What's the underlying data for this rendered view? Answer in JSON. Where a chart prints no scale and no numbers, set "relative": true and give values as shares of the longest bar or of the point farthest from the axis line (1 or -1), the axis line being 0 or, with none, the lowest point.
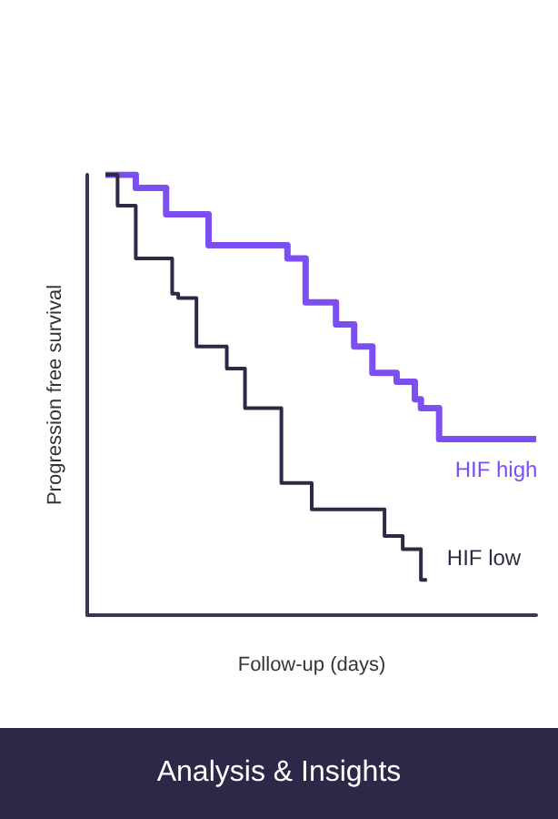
{
  "chart_data": {
    "type": "step",
    "relative": true,
    "xlabel": "Follow-up (days)",
    "ylabel": "Progression free survival",
    "annotations": [
      "Analysis & Insights"
    ],
    "legend": false,
    "categories": [
      null,
      null,
      null,
      null,
      null,
      null,
      null,
      null,
      null,
      null,
      null,
      null,
      null,
      null,
      null,
      null,
      null,
      null,
      null,
      null,
      null,
      null,
      null,
      null,
      null,
      null,
      null,
      null,
      null,
      null,
      null,
      null,
      null,
      null,
      null,
      null,
      null,
      null,
      null,
      null,
      null,
      null,
      null,
      null,
      null,
      null,
      null,
      null,
      null,
      null,
      null,
      null,
      null,
      null,
      null,
      null,
      null,
      null,
      null,
      null,
      null,
      null,
      null,
      null,
      null,
      null,
      null,
      null,
      null,
      null,
      null,
      null,
      null,
      null,
      null
    ],
    "series": [
      {
        "name": "HIF high",
        "color": "#7b4ff0",
        "values": [
          null,
          null,
          null,
          null,
          1,
          1,
          1,
          1,
          1,
          0.97,
          0.97,
          0.97,
          0.97,
          0.97,
          0.91,
          0.91,
          0.91,
          0.91,
          0.91,
          0.91,
          0.91,
          0.84,
          0.84,
          0.84,
          0.84,
          0.84,
          0.84,
          0.84,
          0.84,
          0.84,
          0.84,
          0.84,
          0.84,
          0.84,
          0.81,
          0.81,
          0.81,
          0.71,
          0.71,
          0.71,
          0.71,
          0.71,
          0.66,
          0.66,
          0.66,
          0.61,
          0.61,
          0.61,
          0.55,
          0.55,
          0.55,
          0.55,
          0.53,
          0.53,
          0.53,
          0.49,
          0.47,
          0.47,
          0.47,
          0.4,
          0.4,
          0.4,
          0.4,
          0.4,
          0.4,
          0.4,
          0.4,
          0.4,
          0.4,
          0.4,
          0.4,
          0.4,
          0.4,
          0.4,
          0.4
        ]
      },
      {
        "name": "HIF low",
        "color": "#2d2a45",
        "values": [
          null,
          null,
          null,
          null,
          1,
          1,
          0.93,
          0.93,
          0.93,
          0.81,
          0.81,
          0.81,
          0.81,
          0.81,
          0.81,
          0.73,
          0.72,
          0.72,
          0.72,
          0.61,
          0.61,
          0.61,
          0.61,
          0.61,
          0.56,
          0.56,
          0.56,
          0.47,
          0.47,
          0.47,
          0.47,
          0.47,
          0.47,
          0.3,
          0.3,
          0.3,
          0.3,
          0.3,
          0.24,
          0.24,
          0.24,
          0.24,
          0.24,
          0.24,
          0.24,
          0.24,
          0.24,
          0.24,
          0.24,
          0.24,
          0.18,
          0.18,
          0.18,
          0.15,
          0.15,
          0.15,
          0.08,
          null,
          null,
          null,
          null,
          null,
          null,
          null,
          null,
          null,
          null,
          null,
          null,
          null,
          null,
          null,
          null,
          null,
          null
        ]
      }
    ]
  }
}
